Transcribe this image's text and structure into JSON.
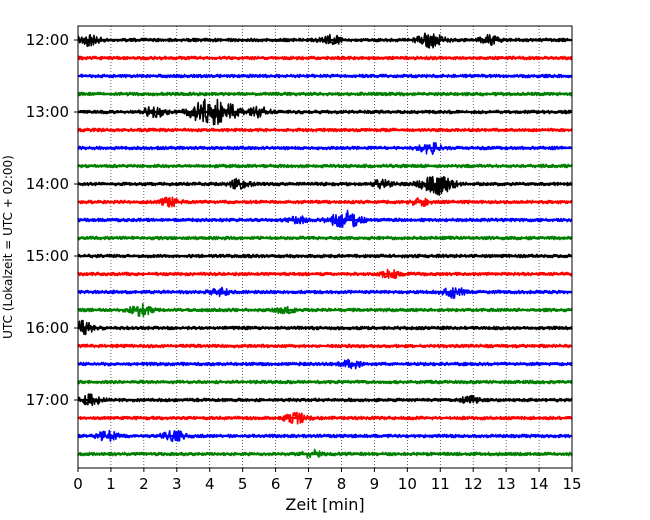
{
  "chart_data": {
    "type": "line",
    "subtype": "helicorder (seismogram drum plot)",
    "xlabel": "Zeit  [min]",
    "ylabel": "UTC (Lokalzeit = UTC + 02:00)",
    "xlim": [
      0,
      15
    ],
    "x_ticks": [
      "0",
      "1",
      "2",
      "3",
      "4",
      "5",
      "6",
      "7",
      "8",
      "9",
      "10",
      "11",
      "12",
      "13",
      "14",
      "15"
    ],
    "y_ticks": [
      "12:00",
      "13:00",
      "14:00",
      "15:00",
      "16:00",
      "17:00"
    ],
    "trace_minutes": 15,
    "trace_start_times": [
      "12:00",
      "12:15",
      "12:30",
      "12:45",
      "13:00",
      "13:15",
      "13:30",
      "13:45",
      "14:00",
      "14:15",
      "14:30",
      "14:45",
      "15:00",
      "15:15",
      "15:30",
      "15:45",
      "16:00",
      "16:15",
      "16:30",
      "16:45",
      "17:00",
      "17:15",
      "17:30",
      "17:45"
    ],
    "trace_colors": [
      "#000000",
      "#ff0000",
      "#0000ff",
      "#008000"
    ],
    "grid": "vertical dotted lines at each minute",
    "events": [
      {
        "trace": 0,
        "minute": 10.7,
        "strength": 0.6
      },
      {
        "trace": 0,
        "minute": 0.3,
        "strength": 0.5
      },
      {
        "trace": 0,
        "minute": 7.7,
        "strength": 0.4
      },
      {
        "trace": 0,
        "minute": 12.5,
        "strength": 0.35
      },
      {
        "trace": 4,
        "minute": 2.3,
        "strength": 0.45
      },
      {
        "trace": 4,
        "minute": 3.9,
        "strength": 1.0
      },
      {
        "trace": 4,
        "minute": 4.5,
        "strength": 0.65
      },
      {
        "trace": 4,
        "minute": 5.5,
        "strength": 0.4
      },
      {
        "trace": 6,
        "minute": 10.7,
        "strength": 0.45
      },
      {
        "trace": 8,
        "minute": 4.9,
        "strength": 0.4
      },
      {
        "trace": 8,
        "minute": 9.2,
        "strength": 0.35
      },
      {
        "trace": 8,
        "minute": 10.9,
        "strength": 0.9
      },
      {
        "trace": 9,
        "minute": 2.8,
        "strength": 0.35
      },
      {
        "trace": 9,
        "minute": 10.4,
        "strength": 0.3
      },
      {
        "trace": 10,
        "minute": 8.1,
        "strength": 0.8
      },
      {
        "trace": 10,
        "minute": 6.7,
        "strength": 0.3
      },
      {
        "trace": 13,
        "minute": 9.5,
        "strength": 0.35
      },
      {
        "trace": 14,
        "minute": 11.4,
        "strength": 0.45
      },
      {
        "trace": 14,
        "minute": 4.3,
        "strength": 0.3
      },
      {
        "trace": 15,
        "minute": 1.9,
        "strength": 0.45
      },
      {
        "trace": 15,
        "minute": 6.3,
        "strength": 0.3
      },
      {
        "trace": 16,
        "minute": 0.1,
        "strength": 0.55
      },
      {
        "trace": 18,
        "minute": 8.3,
        "strength": 0.35
      },
      {
        "trace": 20,
        "minute": 0.4,
        "strength": 0.45
      },
      {
        "trace": 20,
        "minute": 11.9,
        "strength": 0.3
      },
      {
        "trace": 21,
        "minute": 6.6,
        "strength": 0.45
      },
      {
        "trace": 22,
        "minute": 0.9,
        "strength": 0.4
      },
      {
        "trace": 22,
        "minute": 2.9,
        "strength": 0.45
      },
      {
        "trace": 23,
        "minute": 7.1,
        "strength": 0.3
      }
    ]
  }
}
